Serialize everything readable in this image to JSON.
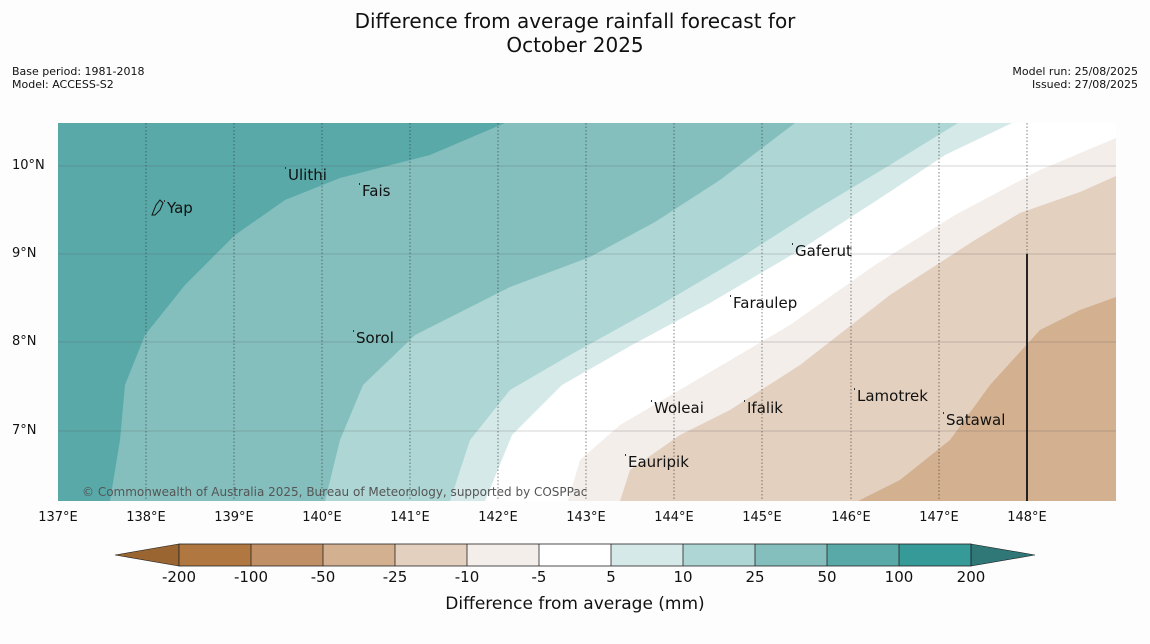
{
  "title_line1": "Difference from average rainfall forecast for",
  "title_line2": "October 2025",
  "meta_left": {
    "base_period": "Base period: 1981-2018",
    "model": "Model: ACCESS-S2"
  },
  "meta_right": {
    "model_run": "Model run: 25/08/2025",
    "issued": "Issued: 27/08/2025"
  },
  "copyright": "© Commonwealth of Australia 2025, Bureau of Meteorology, supported by COSPPac",
  "lat_labels": [
    "10°N",
    "9°N",
    "8°N",
    "7°N"
  ],
  "lon_labels": [
    "137°E",
    "138°E",
    "139°E",
    "140°E",
    "141°E",
    "142°E",
    "143°E",
    "144°E",
    "145°E",
    "146°E",
    "147°E",
    "148°E"
  ],
  "places": [
    "Ulithi",
    "Fais",
    "Yap",
    "Gaferut",
    "Faraulep",
    "Sorol",
    "Woleai",
    "Ifalik",
    "Lamotrek",
    "Satawal",
    "Eauripik"
  ],
  "colorbar": {
    "labels": [
      "-200",
      "-100",
      "-50",
      "-25",
      "-10",
      "-5",
      "5",
      "10",
      "25",
      "50",
      "100",
      "200"
    ],
    "colors": [
      "#9a6530",
      "#b07840",
      "#c18f66",
      "#d3b08f",
      "#e3d0bf",
      "#f3eeea",
      "#ffffff",
      "#d4e9e8",
      "#add6d5",
      "#84bfbe",
      "#59a9a9",
      "#359a98",
      "#2f7877"
    ],
    "title": "Difference from average (mm)"
  }
}
